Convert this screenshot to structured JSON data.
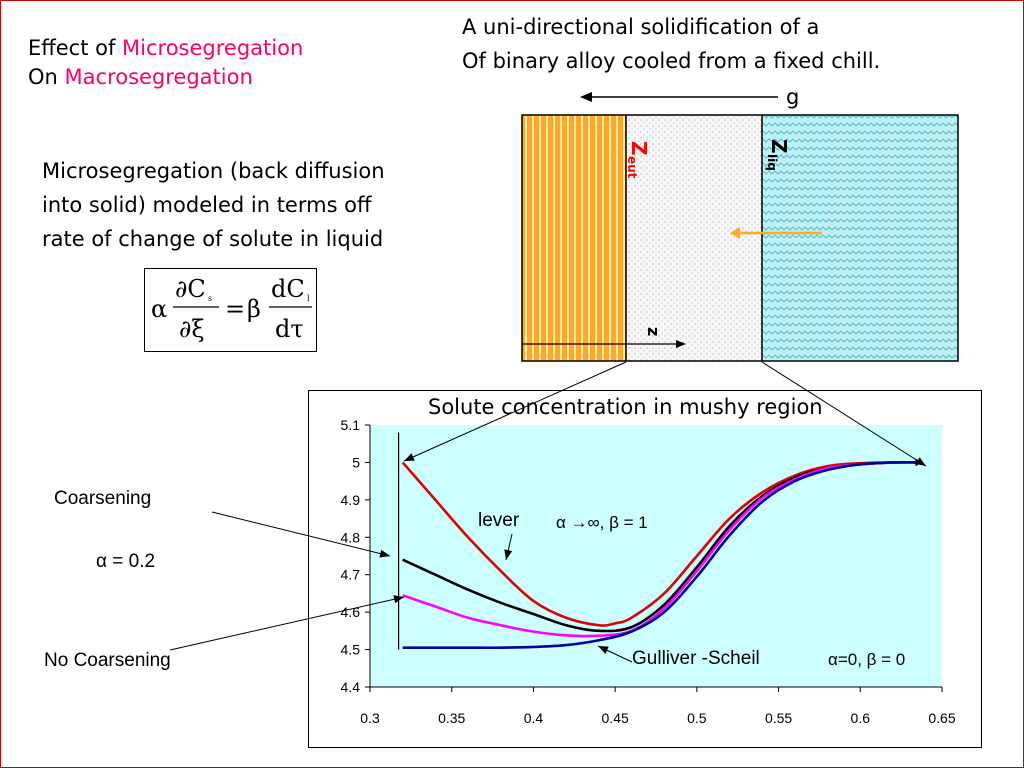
{
  "heading": {
    "line1_prefix": "Effect of ",
    "line1_highlight": "Microsegregation",
    "line2_prefix": "On ",
    "line2_highlight": "Macrosegregation"
  },
  "subtitle": {
    "line1": "A uni-directional solidification of a",
    "line2": "Of binary alloy cooled from a fixed chill."
  },
  "gravity_label": "g",
  "description": {
    "line1": "Microsegregation (back diffusion",
    "line2": "into solid) modeled in terms off",
    "line3": "rate of change of solute in liquid"
  },
  "equation": {
    "alpha": "α",
    "num_left": "∂C",
    "num_left_sub": "s",
    "den_left": "∂ξ",
    "equals": "=",
    "beta": "β",
    "num_right": "dC",
    "num_right_sub": "l",
    "den_right": "dτ"
  },
  "schematic": {
    "z_eut": "Z",
    "z_eut_sub": "eut",
    "z_liq": "Z",
    "z_liq_sub": "liq",
    "z_axis": "z",
    "colors": {
      "solid": "#ffaa22",
      "mushy": "#f2f2f2",
      "liquid": "#bff0f5",
      "arrow": "#ffaa22",
      "label": "#ff0000"
    }
  },
  "chart_data": {
    "type": "line",
    "title": "Solute concentration in mushy region",
    "xlim": [
      0.3,
      0.65
    ],
    "ylim": [
      4.4,
      5.1
    ],
    "x_ticks": [
      "0.3",
      "0.35",
      "0.4",
      "0.45",
      "0.5",
      "0.55",
      "0.6",
      "0.65"
    ],
    "y_ticks": [
      "4.4",
      "4.5",
      "4.6",
      "4.7",
      "4.8",
      "4.9",
      "5",
      "5.1"
    ],
    "plot_background": "#ccffff",
    "series": [
      {
        "color": "#e00000",
        "x": [
          0.32,
          0.34,
          0.36,
          0.38,
          0.4,
          0.42,
          0.44,
          0.45,
          0.46,
          0.48,
          0.5,
          0.52,
          0.54,
          0.56,
          0.58,
          0.6,
          0.62,
          0.635
        ],
        "y": [
          5.0,
          4.9,
          4.8,
          4.71,
          4.63,
          4.585,
          4.565,
          4.57,
          4.585,
          4.65,
          4.75,
          4.85,
          4.92,
          4.965,
          4.99,
          4.998,
          5.0,
          5.0
        ]
      },
      {
        "color": "#000000",
        "x": [
          0.32,
          0.34,
          0.36,
          0.38,
          0.4,
          0.42,
          0.44,
          0.46,
          0.48,
          0.5,
          0.52,
          0.54,
          0.56,
          0.58,
          0.6,
          0.62,
          0.635
        ],
        "y": [
          4.74,
          4.7,
          4.66,
          4.625,
          4.595,
          4.565,
          4.55,
          4.56,
          4.62,
          4.72,
          4.83,
          4.91,
          4.96,
          4.985,
          4.995,
          5.0,
          5.0
        ]
      },
      {
        "color": "#ff00ff",
        "x": [
          0.32,
          0.34,
          0.36,
          0.38,
          0.4,
          0.42,
          0.44,
          0.46,
          0.48,
          0.5,
          0.52,
          0.54,
          0.56,
          0.58,
          0.6,
          0.62,
          0.635
        ],
        "y": [
          4.645,
          4.615,
          4.585,
          4.565,
          4.548,
          4.538,
          4.537,
          4.55,
          4.61,
          4.71,
          4.82,
          4.905,
          4.955,
          4.985,
          4.995,
          5.0,
          5.0
        ]
      },
      {
        "color": "#000099",
        "x": [
          0.32,
          0.34,
          0.36,
          0.38,
          0.4,
          0.42,
          0.44,
          0.46,
          0.48,
          0.5,
          0.52,
          0.54,
          0.56,
          0.58,
          0.6,
          0.62,
          0.635
        ],
        "y": [
          4.505,
          4.505,
          4.505,
          4.505,
          4.507,
          4.512,
          4.525,
          4.548,
          4.6,
          4.695,
          4.805,
          4.895,
          4.95,
          4.98,
          4.995,
          5.0,
          5.0
        ]
      }
    ],
    "annotations": {
      "lever": "lever",
      "lever_params": "α →∞, β = 1",
      "coarsening": "Coarsening",
      "alpha_val": "α = 0.2",
      "no_coarsening": "No Coarsening",
      "gulliver": "Gulliver -Scheil",
      "gulliver_params": "α=0, β = 0"
    }
  }
}
